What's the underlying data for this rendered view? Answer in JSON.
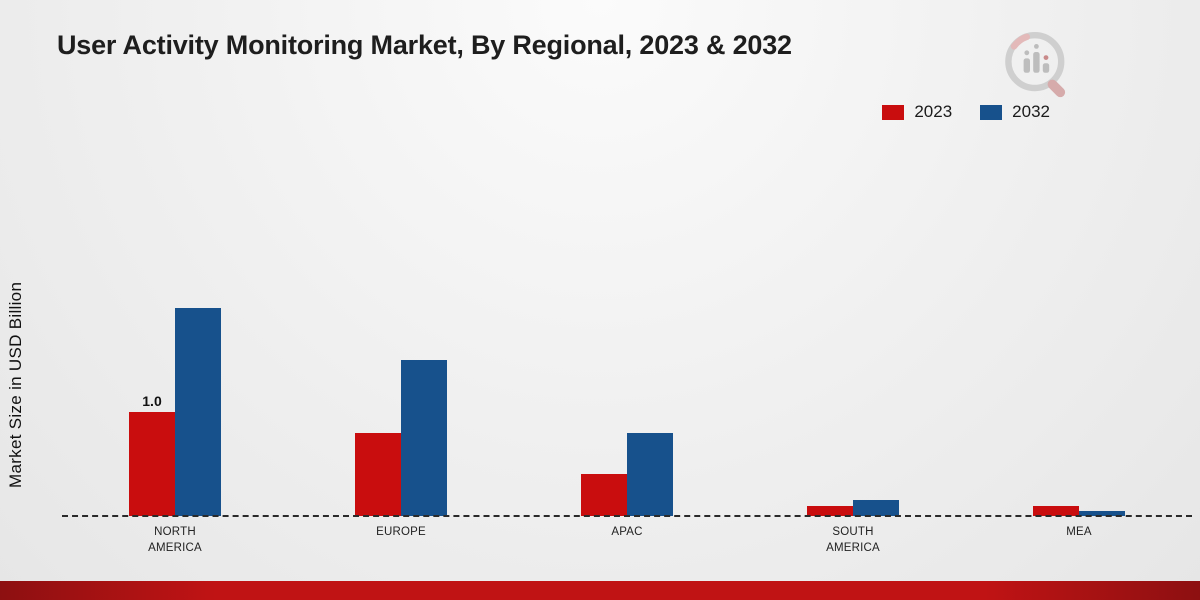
{
  "title": "User Activity Monitoring Market, By Regional, 2023 & 2032",
  "ylabel": "Market Size in USD Billion",
  "legend": [
    {
      "label": "2023",
      "color": "#c90d0e"
    },
    {
      "label": "2032",
      "color": "#17518c"
    }
  ],
  "colors": {
    "series_2023": "#c90d0e",
    "series_2032": "#17518c",
    "bottom_band": "#c01314",
    "baseline": "#2a2a2a"
  },
  "chart_data": {
    "type": "bar",
    "title": "User Activity Monitoring Market, By Regional, 2023 & 2032",
    "xlabel": "",
    "ylabel": "Market Size in USD Billion",
    "ylim": [
      0,
      2.2
    ],
    "grid": false,
    "legend_position": "top-right",
    "categories": [
      "NORTH AMERICA",
      "EUROPE",
      "APAC",
      "SOUTH AMERICA",
      "MEA"
    ],
    "series": [
      {
        "name": "2023",
        "color": "#c90d0e",
        "values": [
          1.0,
          0.8,
          0.4,
          0.1,
          0.1
        ],
        "labels": [
          "1.0",
          "",
          "",
          "",
          ""
        ]
      },
      {
        "name": "2032",
        "color": "#17518c",
        "values": [
          2.0,
          1.5,
          0.8,
          0.15,
          0.05
        ],
        "labels": [
          "",
          "",
          "",
          "",
          ""
        ]
      }
    ],
    "annotations": [
      {
        "text": "1.0",
        "series": "2023",
        "category": "NORTH AMERICA"
      }
    ]
  }
}
